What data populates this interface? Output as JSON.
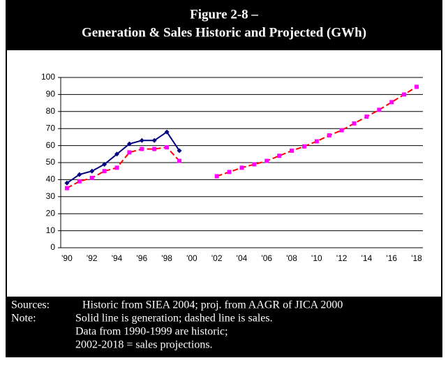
{
  "chart_data": {
    "type": "line",
    "title_lines": [
      "Figure 2-8 –",
      "Generation & Sales Historic and Projected (GWh)"
    ],
    "categories": [
      "'90",
      null,
      "'92",
      null,
      "'94",
      null,
      "'96",
      null,
      "'98",
      null,
      "'00",
      null,
      "'02",
      null,
      "'04",
      null,
      "'06",
      null,
      "'08",
      null,
      "'10",
      null,
      "'12",
      null,
      "'14",
      null,
      "'16",
      null,
      "'18"
    ],
    "series": [
      {
        "name": "Generation",
        "color": "#000080",
        "marker_color": "#000080",
        "marker": "diamond",
        "dashed": false,
        "values": [
          38,
          43,
          45,
          49,
          55,
          61,
          63,
          63,
          68,
          57,
          null,
          null,
          null,
          null,
          null,
          null,
          null,
          null,
          null,
          null,
          null,
          null,
          null,
          null,
          null,
          null,
          null,
          null,
          null
        ]
      },
      {
        "name": "Sales",
        "color": "#ff0000",
        "marker_color": "#ff00ff",
        "marker": "square",
        "dashed": true,
        "values": [
          35,
          39,
          41,
          45,
          47,
          56,
          58,
          58,
          59,
          51,
          null,
          null,
          42,
          44.5,
          47,
          49,
          51,
          54,
          57,
          59.5,
          62.5,
          66,
          69,
          73,
          77,
          81,
          85.5,
          90,
          94.5
        ]
      }
    ],
    "ylim": [
      0,
      100
    ],
    "yticks": [
      0,
      10,
      20,
      30,
      40,
      50,
      60,
      70,
      80,
      90,
      100
    ],
    "grid": true
  },
  "footer": {
    "sources_label": "Sources:",
    "sources": "Historic from SIEA 2004; proj. from AAGR of JICA 2000",
    "note_label": "Note:",
    "notes": [
      "Solid line is generation;   dashed line is sales.",
      "Data from 1990-1999 are historic;",
      "2002-2018 = sales projections."
    ]
  }
}
